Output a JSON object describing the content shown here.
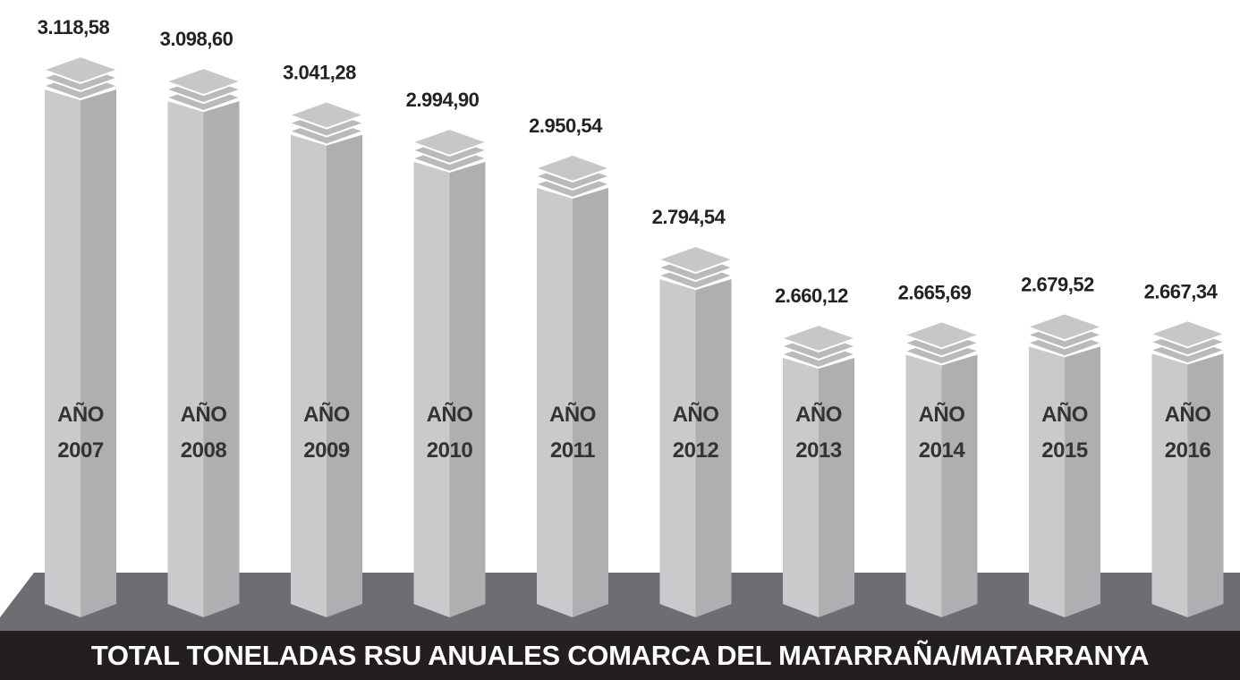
{
  "chart_data": {
    "type": "bar",
    "title": "TOTAL TONELADAS RSU ANUALES COMARCA DEL MATARRAÑA/MATARRANYA",
    "categories": [
      "AÑO 2007",
      "AÑO 2008",
      "AÑO 2009",
      "AÑO 2010",
      "AÑO 2011",
      "AÑO 2012",
      "AÑO 2013",
      "AÑO 2014",
      "AÑO 2015",
      "AÑO 2016"
    ],
    "values": [
      3118.58,
      3098.6,
      3041.28,
      2994.9,
      2950.54,
      2794.54,
      2660.12,
      2665.69,
      2679.52,
      2667.34
    ],
    "value_labels": [
      "3.118,58",
      "3.098,60",
      "3.041,28",
      "2.994,90",
      "2.950,54",
      "2.794,54",
      "2.660,12",
      "2.665,69",
      "2.679,52",
      "2.667,34"
    ],
    "color": "#c9cacb"
  }
}
